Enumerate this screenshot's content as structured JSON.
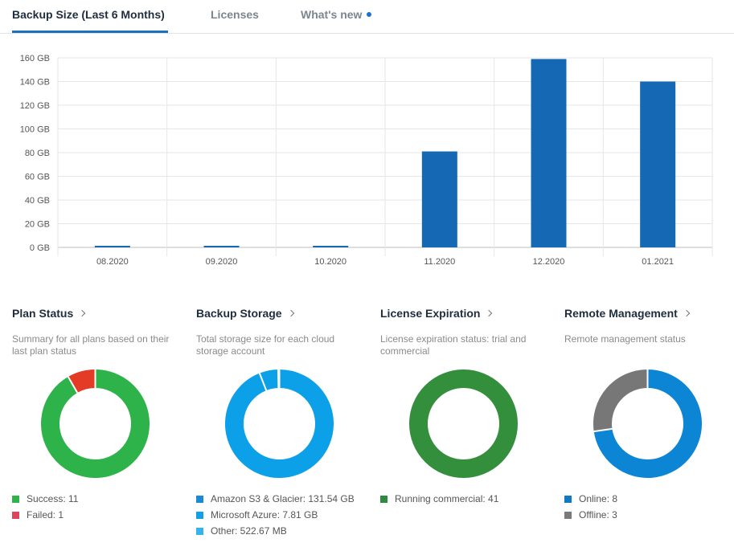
{
  "tabs": [
    {
      "label": "Backup Size (Last 6 Months)",
      "active": true
    },
    {
      "label": "Licenses",
      "active": false
    },
    {
      "label": "What's new",
      "active": false,
      "has_notification_dot": true
    }
  ],
  "chart_data": {
    "type": "bar",
    "categories": [
      "08.2020",
      "09.2020",
      "10.2020",
      "11.2020",
      "12.2020",
      "01.2021"
    ],
    "values": [
      1,
      1,
      1,
      81,
      159,
      140
    ],
    "unit": "GB",
    "ylim": [
      0,
      160
    ],
    "yticks": [
      "0 GB",
      "20 GB",
      "40 GB",
      "60 GB",
      "80 GB",
      "100 GB",
      "120 GB",
      "140 GB",
      "160 GB"
    ],
    "grid": true,
    "color": "#1569b4"
  },
  "panels": [
    {
      "title": "Plan Status",
      "description": "Summary for all plans based on their last plan status",
      "legend": [
        {
          "label": "Success: 11",
          "color": "#2db34a",
          "value": 11
        },
        {
          "label": "Failed: 1",
          "color": "#e0445a",
          "value": 1
        }
      ],
      "donut_colors": [
        "#2db34a",
        "#e33b26"
      ]
    },
    {
      "title": "Backup Storage",
      "description": "Total storage size for each cloud storage account",
      "legend": [
        {
          "label": "Amazon S3 & Glacier: 131.54 GB",
          "color": "#1a8ad4",
          "value": 131.54
        },
        {
          "label": "Microsoft Azure: 7.81 GB",
          "color": "#0fa0e6",
          "value": 7.81
        },
        {
          "label": "Other: 522.67 MB",
          "color": "#33b5ec",
          "value": 0.52
        }
      ],
      "donut_colors": [
        "#0ba0e8",
        "#0ba0e8",
        "#0ba0e8"
      ]
    },
    {
      "title": "License Expiration",
      "description": "License expiration status: trial and commercial",
      "legend": [
        {
          "label": "Running commercial: 41",
          "color": "#2e8b3e",
          "value": 41
        }
      ],
      "donut_colors": [
        "#348f3c"
      ]
    },
    {
      "title": "Remote Management",
      "description": "Remote management status",
      "legend": [
        {
          "label": "Online: 8",
          "color": "#1079c4",
          "value": 8
        },
        {
          "label": "Offline: 3",
          "color": "#7a7a7a",
          "value": 3
        }
      ],
      "donut_colors": [
        "#0c86d4",
        "#777777"
      ]
    }
  ]
}
